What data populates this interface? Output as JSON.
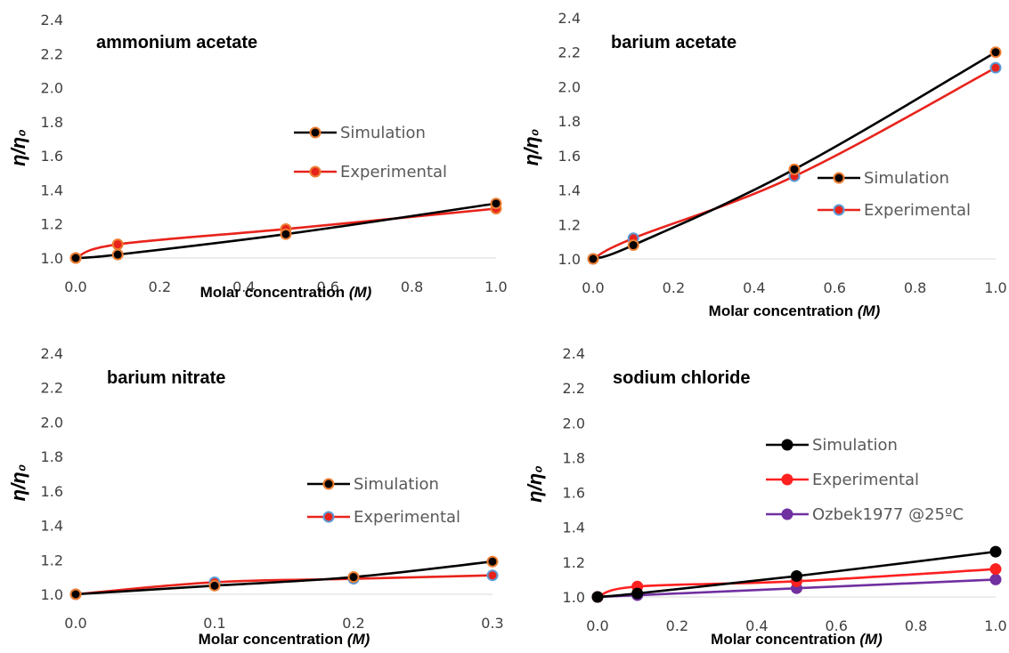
{
  "chart_data": [
    {
      "type": "line",
      "title": "ammonium acetate",
      "xlabel": "Molar concentration",
      "xlabel_unit": "(M)",
      "ylabel": "η/η₀",
      "xlim": [
        0,
        1.0
      ],
      "ylim": [
        1.0,
        2.4
      ],
      "xticks": [
        "0.0",
        "0.2",
        "0.4",
        "0.6",
        "0.8",
        "1.0"
      ],
      "yticks": [
        "1.0",
        "1.2",
        "1.4",
        "1.6",
        "1.8",
        "2.0",
        "2.2",
        "2.4"
      ],
      "legend_position": "center-right",
      "series": [
        {
          "name": "Simulation",
          "line_color": "#000000",
          "marker_fill": "#000000",
          "marker_edge": "#ed7d31",
          "x": [
            0.0,
            0.1,
            0.5,
            1.0
          ],
          "y": [
            1.0,
            1.02,
            1.14,
            1.32
          ]
        },
        {
          "name": "Experimental",
          "line_color": "#e8231b",
          "marker_fill": "#e8231b",
          "marker_edge": "#ed7d31",
          "x": [
            0.0,
            0.1,
            0.5,
            1.0
          ],
          "y": [
            1.0,
            1.08,
            1.17,
            1.29
          ]
        }
      ]
    },
    {
      "type": "line",
      "title": "barium acetate",
      "xlabel": "Molar concentration",
      "xlabel_unit": "(M)",
      "ylabel": "η/η₀",
      "xlim": [
        0,
        1.0
      ],
      "ylim": [
        1.0,
        2.4
      ],
      "xticks": [
        "0.0",
        "0.2",
        "0.4",
        "0.6",
        "0.8",
        "1.0"
      ],
      "yticks": [
        "1.0",
        "1.2",
        "1.4",
        "1.6",
        "1.8",
        "2.0",
        "2.2",
        "2.4"
      ],
      "legend_position": "center-right",
      "series": [
        {
          "name": "Simulation",
          "line_color": "#000000",
          "marker_fill": "#000000",
          "marker_edge": "#ed7d31",
          "x": [
            0.0,
            0.1,
            0.5,
            1.0
          ],
          "y": [
            1.0,
            1.08,
            1.52,
            2.2
          ]
        },
        {
          "name": "Experimental",
          "line_color": "#e8231b",
          "marker_fill": "#e8231b",
          "marker_edge": "#5b9bd5",
          "x": [
            0.0,
            0.1,
            0.5,
            1.0
          ],
          "y": [
            1.0,
            1.12,
            1.48,
            2.11
          ]
        }
      ]
    },
    {
      "type": "line",
      "title": "barium nitrate",
      "xlabel": "Molar concentration",
      "xlabel_unit": "(M)",
      "ylabel": "η/η₀",
      "xlim": [
        0,
        0.3
      ],
      "ylim": [
        1.0,
        2.4
      ],
      "xticks": [
        "0.0",
        "0.1",
        "0.2",
        "0.3"
      ],
      "yticks": [
        "1.0",
        "1.2",
        "1.4",
        "1.6",
        "1.8",
        "2.0",
        "2.2",
        "2.4"
      ],
      "legend_position": "center-right",
      "series": [
        {
          "name": "Simulation",
          "line_color": "#000000",
          "marker_fill": "#000000",
          "marker_edge": "#ed7d31",
          "x": [
            0.0,
            0.1,
            0.2,
            0.3
          ],
          "y": [
            1.0,
            1.05,
            1.1,
            1.19
          ]
        },
        {
          "name": "Experimental",
          "line_color": "#e8231b",
          "marker_fill": "#e8231b",
          "marker_edge": "#5b9bd5",
          "x": [
            0.0,
            0.1,
            0.2,
            0.3
          ],
          "y": [
            1.0,
            1.07,
            1.09,
            1.11
          ]
        }
      ]
    },
    {
      "type": "line",
      "title": "sodium chloride",
      "xlabel": "Molar concentration",
      "xlabel_unit": "(M)",
      "ylabel": "η/η₀",
      "xlim": [
        0,
        1.0
      ],
      "ylim": [
        1.0,
        2.4
      ],
      "xticks": [
        "0.0",
        "0.2",
        "0.4",
        "0.6",
        "0.8",
        "1.0"
      ],
      "yticks": [
        "1.0",
        "1.2",
        "1.4",
        "1.6",
        "1.8",
        "2.0",
        "2.2",
        "2.4"
      ],
      "legend_position": "center-right",
      "series": [
        {
          "name": "Simulation",
          "line_color": "#000000",
          "marker_fill": "#000000",
          "marker_edge": "#000000",
          "x": [
            0.0,
            0.1,
            0.5,
            1.0
          ],
          "y": [
            1.0,
            1.02,
            1.12,
            1.26
          ]
        },
        {
          "name": "Experimental",
          "line_color": "#ff2020",
          "marker_fill": "#ff2020",
          "marker_edge": "#ff2020",
          "x": [
            0.0,
            0.1,
            0.5,
            1.0
          ],
          "y": [
            1.0,
            1.06,
            1.09,
            1.16
          ]
        },
        {
          "name": "Ozbek1977 @25ºC",
          "line_color": "#7030a0",
          "marker_fill": "#7030a0",
          "marker_edge": "#7030a0",
          "x": [
            0.0,
            0.1,
            0.5,
            1.0
          ],
          "y": [
            1.0,
            1.01,
            1.05,
            1.1
          ]
        }
      ]
    }
  ]
}
